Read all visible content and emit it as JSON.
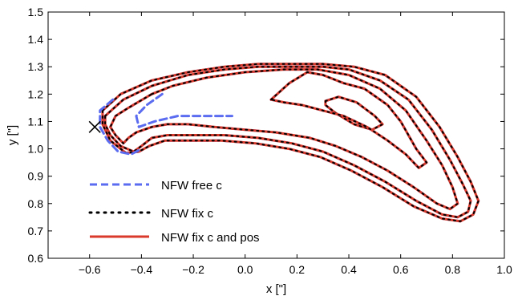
{
  "chart_data": {
    "type": "line",
    "title": "",
    "xlabel": "x [\"]",
    "ylabel": "y [\"]",
    "xlim": [
      -0.76,
      1.0
    ],
    "ylim": [
      0.6,
      1.5
    ],
    "xticks": [
      -0.6,
      -0.4,
      -0.2,
      0.0,
      0.2,
      0.4,
      0.6,
      0.8,
      1.0
    ],
    "xtick_labels": [
      "−0.6",
      "−0.4",
      "−0.2",
      "0.0",
      "0.2",
      "0.4",
      "0.6",
      "0.8",
      "1.0"
    ],
    "yticks": [
      0.6,
      0.7,
      0.8,
      0.9,
      1.0,
      1.1,
      1.2,
      1.3,
      1.4,
      1.5
    ],
    "ytick_labels": [
      "0.6",
      "0.7",
      "0.8",
      "0.9",
      "1.0",
      "1.1",
      "1.2",
      "1.3",
      "1.4",
      "1.5"
    ],
    "grid": false,
    "legend_position": "lower-left",
    "marker": {
      "symbol": "x",
      "x": -0.58,
      "y": 1.08,
      "color": "#000000"
    },
    "series": [
      {
        "name": "NFW free c",
        "style": "dashed",
        "color": "#5b6cf0"
      },
      {
        "name": "NFW fix c",
        "style": "dotted",
        "color": "#000000"
      },
      {
        "name": "NFW fix c and pos",
        "style": "solid",
        "color": "#d93a2b"
      }
    ],
    "contours": [
      [
        [
          0.31,
          1.175
        ],
        [
          0.36,
          1.19
        ],
        [
          0.43,
          1.17
        ],
        [
          0.5,
          1.12
        ],
        [
          0.53,
          1.09
        ],
        [
          0.49,
          1.07
        ],
        [
          0.42,
          1.09
        ],
        [
          0.35,
          1.13
        ],
        [
          0.31,
          1.16
        ],
        [
          0.31,
          1.175
        ]
      ],
      [
        [
          0.1,
          1.18
        ],
        [
          0.17,
          1.24
        ],
        [
          0.24,
          1.28
        ],
        [
          0.3,
          1.27
        ],
        [
          0.38,
          1.24
        ],
        [
          0.46,
          1.22
        ],
        [
          0.55,
          1.16
        ],
        [
          0.6,
          1.1
        ],
        [
          0.66,
          1.0
        ],
        [
          0.7,
          0.95
        ],
        [
          0.67,
          0.93
        ],
        [
          0.62,
          0.98
        ],
        [
          0.55,
          1.03
        ],
        [
          0.47,
          1.08
        ],
        [
          0.38,
          1.12
        ],
        [
          0.3,
          1.14
        ],
        [
          0.22,
          1.16
        ],
        [
          0.15,
          1.17
        ],
        [
          0.1,
          1.18
        ]
      ],
      [
        [
          -0.36,
          1.2
        ],
        [
          -0.28,
          1.23
        ],
        [
          -0.15,
          1.26
        ],
        [
          0.0,
          1.28
        ],
        [
          0.15,
          1.29
        ],
        [
          0.28,
          1.29
        ],
        [
          0.4,
          1.27
        ],
        [
          0.52,
          1.22
        ],
        [
          0.62,
          1.14
        ],
        [
          0.7,
          1.03
        ],
        [
          0.76,
          0.94
        ],
        [
          0.8,
          0.86
        ],
        [
          0.82,
          0.8
        ],
        [
          0.79,
          0.78
        ],
        [
          0.74,
          0.8
        ],
        [
          0.65,
          0.86
        ],
        [
          0.55,
          0.92
        ],
        [
          0.45,
          0.97
        ],
        [
          0.35,
          1.01
        ],
        [
          0.25,
          1.04
        ],
        [
          0.12,
          1.06
        ],
        [
          0.0,
          1.07
        ],
        [
          -0.12,
          1.08
        ],
        [
          -0.22,
          1.09
        ],
        [
          -0.3,
          1.09
        ],
        [
          -0.36,
          1.08
        ],
        [
          -0.42,
          1.06
        ],
        [
          -0.45,
          1.04
        ],
        [
          -0.47,
          1.02
        ],
        [
          -0.5,
          1.05
        ],
        [
          -0.52,
          1.08
        ],
        [
          -0.5,
          1.12
        ],
        [
          -0.45,
          1.15
        ],
        [
          -0.36,
          1.2
        ]
      ],
      [
        [
          -0.54,
          1.12
        ],
        [
          -0.47,
          1.18
        ],
        [
          -0.36,
          1.23
        ],
        [
          -0.22,
          1.27
        ],
        [
          -0.08,
          1.29
        ],
        [
          0.05,
          1.3
        ],
        [
          0.18,
          1.3
        ],
        [
          0.3,
          1.3
        ],
        [
          0.4,
          1.29
        ],
        [
          0.52,
          1.25
        ],
        [
          0.63,
          1.18
        ],
        [
          0.72,
          1.07
        ],
        [
          0.79,
          0.96
        ],
        [
          0.84,
          0.87
        ],
        [
          0.87,
          0.81
        ],
        [
          0.86,
          0.77
        ],
        [
          0.82,
          0.75
        ],
        [
          0.76,
          0.76
        ],
        [
          0.66,
          0.81
        ],
        [
          0.54,
          0.88
        ],
        [
          0.42,
          0.94
        ],
        [
          0.3,
          0.99
        ],
        [
          0.18,
          1.02
        ],
        [
          0.05,
          1.04
        ],
        [
          -0.08,
          1.05
        ],
        [
          -0.2,
          1.05
        ],
        [
          -0.3,
          1.05
        ],
        [
          -0.36,
          1.04
        ],
        [
          -0.4,
          1.01
        ],
        [
          -0.43,
          0.99
        ],
        [
          -0.48,
          1.01
        ],
        [
          -0.52,
          1.05
        ],
        [
          -0.54,
          1.09
        ],
        [
          -0.54,
          1.12
        ]
      ],
      [
        [
          -0.55,
          1.14
        ],
        [
          -0.48,
          1.2
        ],
        [
          -0.36,
          1.25
        ],
        [
          -0.22,
          1.28
        ],
        [
          -0.08,
          1.3
        ],
        [
          0.05,
          1.31
        ],
        [
          0.18,
          1.31
        ],
        [
          0.3,
          1.31
        ],
        [
          0.42,
          1.3
        ],
        [
          0.54,
          1.27
        ],
        [
          0.66,
          1.19
        ],
        [
          0.75,
          1.08
        ],
        [
          0.82,
          0.97
        ],
        [
          0.87,
          0.88
        ],
        [
          0.9,
          0.81
        ],
        [
          0.88,
          0.76
        ],
        [
          0.83,
          0.735
        ],
        [
          0.76,
          0.745
        ],
        [
          0.65,
          0.79
        ],
        [
          0.53,
          0.86
        ],
        [
          0.41,
          0.92
        ],
        [
          0.29,
          0.97
        ],
        [
          0.17,
          1.0
        ],
        [
          0.04,
          1.02
        ],
        [
          -0.09,
          1.03
        ],
        [
          -0.21,
          1.03
        ],
        [
          -0.31,
          1.03
        ],
        [
          -0.37,
          1.01
        ],
        [
          -0.41,
          0.99
        ],
        [
          -0.46,
          0.985
        ],
        [
          -0.52,
          1.03
        ],
        [
          -0.55,
          1.09
        ],
        [
          -0.55,
          1.14
        ]
      ]
    ],
    "free_c_inner_loop": [
      [
        -0.32,
        1.2
      ],
      [
        -0.38,
        1.16
      ],
      [
        -0.42,
        1.12
      ],
      [
        -0.41,
        1.08
      ],
      [
        -0.35,
        1.1
      ],
      [
        -0.26,
        1.12
      ],
      [
        -0.15,
        1.12
      ],
      [
        -0.05,
        1.12
      ]
    ],
    "free_c_outer_offset": [
      [
        -0.51,
        1.18
      ],
      [
        -0.56,
        1.14
      ],
      [
        -0.56,
        1.08
      ],
      [
        -0.53,
        1.03
      ],
      [
        -0.49,
        0.99
      ],
      [
        -0.44,
        0.98
      ],
      [
        -0.4,
        1.0
      ]
    ]
  }
}
